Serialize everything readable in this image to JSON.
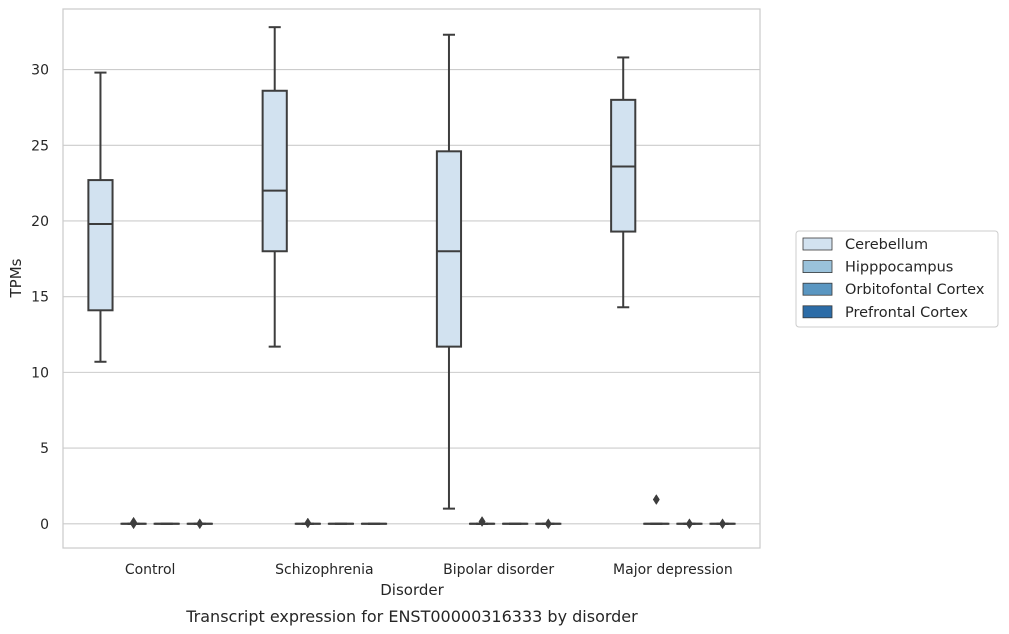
{
  "caption": "Transcript expression for ENST00000316333 by disorder",
  "chart_data": {
    "type": "box",
    "xlabel": "Disorder",
    "ylabel": "TPMs",
    "ylim": [
      -1.6,
      34.0
    ],
    "yticks": [
      0,
      5,
      10,
      15,
      20,
      25,
      30
    ],
    "categories": [
      "Control",
      "Schizophrenia",
      "Bipolar disorder",
      "Major depression"
    ],
    "grid": true,
    "legend_position": "right",
    "series": [
      {
        "name": "Cerebellum",
        "color": "#d2e2f0",
        "boxes": [
          {
            "category": "Control",
            "whislo": 10.7,
            "q1": 14.1,
            "med": 19.8,
            "q3": 22.7,
            "whishi": 29.8,
            "fliers": []
          },
          {
            "category": "Schizophrenia",
            "whislo": 11.7,
            "q1": 18.0,
            "med": 22.0,
            "q3": 28.6,
            "whishi": 32.8,
            "fliers": []
          },
          {
            "category": "Bipolar disorder",
            "whislo": 1.0,
            "q1": 11.7,
            "med": 18.0,
            "q3": 24.6,
            "whishi": 32.3,
            "fliers": []
          },
          {
            "category": "Major depression",
            "whislo": 14.3,
            "q1": 19.3,
            "med": 23.6,
            "q3": 28.0,
            "whishi": 30.8,
            "fliers": []
          }
        ]
      },
      {
        "name": "Hipppocampus",
        "color": "#9ac2db",
        "boxes": [
          {
            "category": "Control",
            "whislo": 0,
            "q1": 0,
            "med": 0,
            "q3": 0,
            "whishi": 0,
            "fliers": [
              0.1,
              0.0
            ]
          },
          {
            "category": "Schizophrenia",
            "whislo": 0,
            "q1": 0,
            "med": 0,
            "q3": 0,
            "whishi": 0,
            "fliers": [
              0.05
            ]
          },
          {
            "category": "Bipolar disorder",
            "whislo": 0,
            "q1": 0,
            "med": 0,
            "q3": 0,
            "whishi": 0,
            "fliers": [
              0.15
            ]
          },
          {
            "category": "Major depression",
            "whislo": 0,
            "q1": 0,
            "med": 0,
            "q3": 0,
            "whishi": 0,
            "fliers": [
              1.6
            ]
          }
        ]
      },
      {
        "name": "Orbitofontal Cortex",
        "color": "#5a96c1",
        "boxes": [
          {
            "category": "Control",
            "whislo": 0,
            "q1": 0,
            "med": 0,
            "q3": 0,
            "whishi": 0,
            "fliers": []
          },
          {
            "category": "Schizophrenia",
            "whislo": 0,
            "q1": 0,
            "med": 0,
            "q3": 0,
            "whishi": 0,
            "fliers": []
          },
          {
            "category": "Bipolar disorder",
            "whislo": 0,
            "q1": 0,
            "med": 0,
            "q3": 0,
            "whishi": 0,
            "fliers": []
          },
          {
            "category": "Major depression",
            "whislo": 0,
            "q1": 0,
            "med": 0,
            "q3": 0,
            "whishi": 0,
            "fliers": [
              0.0
            ]
          }
        ]
      },
      {
        "name": "Prefrontal Cortex",
        "color": "#2c6ca7",
        "boxes": [
          {
            "category": "Control",
            "whislo": 0,
            "q1": 0,
            "med": 0,
            "q3": 0,
            "whishi": 0,
            "fliers": [
              0.0
            ]
          },
          {
            "category": "Schizophrenia",
            "whislo": 0,
            "q1": 0,
            "med": 0,
            "q3": 0,
            "whishi": 0,
            "fliers": []
          },
          {
            "category": "Bipolar disorder",
            "whislo": 0,
            "q1": 0,
            "med": 0,
            "q3": 0,
            "whishi": 0,
            "fliers": [
              0.0
            ]
          },
          {
            "category": "Major depression",
            "whislo": 0,
            "q1": 0,
            "med": 0,
            "q3": 0,
            "whishi": 0,
            "fliers": [
              0.0
            ]
          }
        ]
      }
    ],
    "colors": {
      "grid": "#cccccc",
      "frame": "#cccccc",
      "line": "#3d3d3d",
      "text": "#262626"
    }
  }
}
